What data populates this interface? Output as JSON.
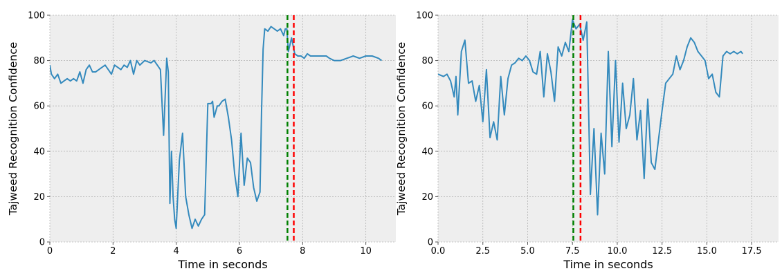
{
  "chart_data": [
    {
      "type": "line",
      "title": "",
      "xlabel": "Time in seconds",
      "ylabel": "Tajweed Recognition Confidence",
      "xlim": [
        0,
        10.95
      ],
      "ylim": [
        0,
        100
      ],
      "xticks": [
        0,
        2,
        4,
        6,
        8,
        10
      ],
      "xtick_labels": [
        "0",
        "2",
        "4",
        "6",
        "8",
        "10"
      ],
      "yticks": [
        0,
        20,
        40,
        60,
        80,
        100
      ],
      "ytick_labels": [
        "0",
        "20",
        "40",
        "60",
        "80",
        "100"
      ],
      "grid": true,
      "colors": {
        "series": "#348abd",
        "vline_green": "#008000",
        "vline_red": "#ff0000",
        "background": "#eeeeee",
        "grid": "#b2b2b2"
      },
      "vlines": [
        {
          "x": 7.52,
          "color": "green",
          "style": "dashed"
        },
        {
          "x": 7.72,
          "color": "red",
          "style": "dashed"
        }
      ],
      "series": [
        {
          "x": [
            0,
            0.05,
            0.15,
            0.25,
            0.35,
            0.45,
            0.55,
            0.65,
            0.75,
            0.85,
            0.95,
            1.05,
            1.15,
            1.25,
            1.35,
            1.45,
            1.55,
            1.65,
            1.75,
            1.85,
            1.95,
            2.05,
            2.15,
            2.25,
            2.35,
            2.45,
            2.55,
            2.65,
            2.75,
            2.85,
            3.0,
            3.2,
            3.3,
            3.4,
            3.5,
            3.6,
            3.7,
            3.75,
            3.8,
            3.85,
            3.9,
            3.95,
            4.0,
            4.1,
            4.2,
            4.3,
            4.4,
            4.5,
            4.6,
            4.7,
            4.8,
            4.9,
            5.0,
            5.1,
            5.15,
            5.2,
            5.3,
            5.35,
            5.45,
            5.55,
            5.65,
            5.75,
            5.85,
            5.95,
            6.05,
            6.15,
            6.25,
            6.35,
            6.45,
            6.55,
            6.65,
            6.7,
            6.75,
            6.8,
            6.9,
            7.0,
            7.1,
            7.2,
            7.3,
            7.4,
            7.45,
            7.5,
            7.55,
            7.65,
            7.75,
            7.85,
            7.95,
            8.05,
            8.15,
            8.25,
            8.35,
            8.45,
            8.55,
            8.65,
            8.75,
            8.85,
            9.0,
            9.2,
            9.4,
            9.6,
            9.8,
            10.0,
            10.2,
            10.4,
            10.5
          ],
          "values": [
            78,
            74,
            72,
            74,
            70,
            71,
            72,
            71,
            72,
            71,
            75,
            70,
            76,
            78,
            75,
            75,
            76,
            77,
            78,
            76,
            74,
            78,
            77,
            76,
            78,
            77,
            80,
            74,
            80,
            78,
            80,
            79,
            80,
            78,
            76,
            47,
            81,
            75,
            17,
            40,
            20,
            10,
            6,
            36,
            48,
            20,
            12,
            6,
            10,
            7,
            10,
            12,
            61,
            61,
            62,
            55,
            60,
            60,
            62,
            63,
            55,
            45,
            30,
            20,
            48,
            25,
            37,
            35,
            24,
            18,
            22,
            57,
            85,
            94,
            93,
            95,
            94,
            93,
            94,
            91,
            94,
            94,
            84,
            90,
            83,
            82,
            82,
            81,
            83,
            82,
            82,
            82,
            82,
            82,
            82,
            81,
            80,
            80,
            81,
            82,
            81,
            82,
            82,
            81,
            80
          ],
          "name": ""
        }
      ]
    },
    {
      "type": "line",
      "title": "",
      "xlabel": "Time in seconds",
      "ylabel": "Tajweed Recognition Confidence",
      "xlim": [
        0,
        19.0
      ],
      "ylim": [
        0,
        100
      ],
      "xticks": [
        0,
        2.5,
        5,
        7.5,
        10,
        12.5,
        15,
        17.5
      ],
      "xtick_labels": [
        "0.0",
        "2.5",
        "5.0",
        "7.5",
        "10.0",
        "12.5",
        "15.0",
        "17.5"
      ],
      "yticks": [
        0,
        20,
        40,
        60,
        80,
        100
      ],
      "ytick_labels": [
        "0",
        "20",
        "40",
        "60",
        "80",
        "100"
      ],
      "grid": true,
      "colors": {
        "series": "#348abd",
        "vline_green": "#008000",
        "vline_red": "#ff0000",
        "background": "#eeeeee",
        "grid": "#b2b2b2"
      },
      "vlines": [
        {
          "x": 7.55,
          "color": "green",
          "style": "dashed"
        },
        {
          "x": 7.95,
          "color": "red",
          "style": "dashed"
        }
      ],
      "series": [
        {
          "x": [
            0,
            0.3,
            0.5,
            0.7,
            0.9,
            1.0,
            1.1,
            1.3,
            1.5,
            1.7,
            1.9,
            2.1,
            2.3,
            2.5,
            2.7,
            2.9,
            3.1,
            3.3,
            3.5,
            3.7,
            3.9,
            4.1,
            4.3,
            4.5,
            4.7,
            4.9,
            5.1,
            5.3,
            5.5,
            5.7,
            5.9,
            6.1,
            6.3,
            6.5,
            6.7,
            6.9,
            7.1,
            7.3,
            7.5,
            7.7,
            7.9,
            8.1,
            8.3,
            8.5,
            8.7,
            8.9,
            9.1,
            9.3,
            9.5,
            9.7,
            9.9,
            10.1,
            10.3,
            10.5,
            10.7,
            10.9,
            11.1,
            11.3,
            11.5,
            11.7,
            11.9,
            12.1,
            12.3,
            12.5,
            12.7,
            12.9,
            13.1,
            13.3,
            13.5,
            13.7,
            13.9,
            14.1,
            14.3,
            14.5,
            14.7,
            14.9,
            15.1,
            15.3,
            15.5,
            15.7,
            15.9,
            16.1,
            16.3,
            16.5,
            16.7,
            16.9,
            17.0
          ],
          "values": [
            74,
            73,
            74,
            71,
            64,
            73,
            56,
            84,
            89,
            70,
            71,
            62,
            69,
            53,
            76,
            46,
            53,
            45,
            73,
            56,
            72,
            78,
            79,
            81,
            80,
            82,
            80,
            75,
            74,
            84,
            64,
            83,
            75,
            62,
            86,
            82,
            88,
            84,
            98,
            94,
            96,
            89,
            97,
            21,
            50,
            12,
            48,
            30,
            84,
            42,
            80,
            44,
            70,
            50,
            56,
            72,
            45,
            58,
            28,
            63,
            35,
            32,
            45,
            58,
            70,
            72,
            74,
            82,
            76,
            80,
            86,
            90,
            88,
            84,
            82,
            80,
            72,
            74,
            66,
            64,
            82,
            84,
            83,
            84,
            83,
            84,
            83
          ],
          "name": ""
        }
      ]
    }
  ]
}
